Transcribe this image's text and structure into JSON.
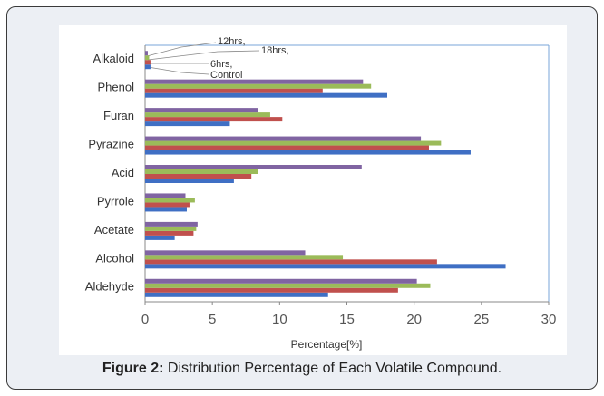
{
  "chart_data": {
    "type": "barh",
    "categories": [
      "Alkaloid",
      "Phenol",
      "Furan",
      "Pyrazine",
      "Acid",
      "Pyrrole",
      "Acetate",
      "Alcohol",
      "Aldehyde"
    ],
    "series": [
      {
        "name": "Control",
        "color": "#3f6fc4",
        "values": [
          0.4,
          18,
          6.3,
          24.2,
          6.6,
          3.1,
          2.2,
          26.8,
          13.6
        ]
      },
      {
        "name": "6hrs,",
        "color": "#c0504d",
        "values": [
          0.4,
          13.2,
          10.2,
          21.1,
          7.9,
          3.3,
          3.6,
          21.7,
          18.8
        ]
      },
      {
        "name": "12hrs,",
        "color": "#9bbb59",
        "values": [
          0.3,
          16.8,
          9.3,
          22,
          8.4,
          3.7,
          3.8,
          14.7,
          21.2
        ]
      },
      {
        "name": "18hrs,",
        "color": "#8064a2",
        "values": [
          0.2,
          16.2,
          8.4,
          20.5,
          16.1,
          3,
          3.9,
          11.9,
          20.2
        ]
      }
    ],
    "x_label": "Percentage[%]",
    "xlim": [
      0,
      30
    ],
    "xticks": [
      0,
      5,
      10,
      15,
      20,
      25,
      30
    ]
  },
  "caption": {
    "label": "Figure 2:",
    "text": "Distribution Percentage of Each Volatile Compound."
  }
}
